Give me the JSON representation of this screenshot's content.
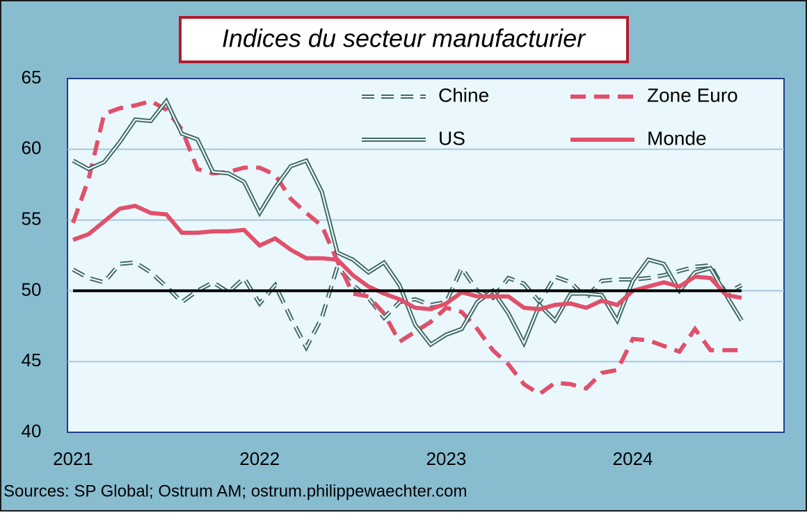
{
  "chart_data": {
    "type": "line",
    "title": "Indices du secteur manufacturier",
    "source": "Sources: SP Global; Ostrum AM; ostrum.philippewaechter.com",
    "categories": [
      "2021",
      null,
      null,
      null,
      null,
      null,
      null,
      null,
      null,
      null,
      null,
      null,
      "2022",
      null,
      null,
      null,
      null,
      null,
      null,
      null,
      null,
      null,
      null,
      null,
      "2023",
      null,
      null,
      null,
      null,
      null,
      null,
      null,
      null,
      null,
      null,
      null,
      "2024",
      null,
      null,
      null,
      null,
      null,
      null,
      null
    ],
    "ylim": [
      40,
      65
    ],
    "yticks": [
      40,
      45,
      50,
      55,
      60,
      65
    ],
    "grid": true,
    "reference_line": 50,
    "legend": "top-right",
    "series": [
      {
        "name": "Chine",
        "color": "#3d6b66",
        "dash": true,
        "double": true,
        "values": [
          51.5,
          50.9,
          50.6,
          51.9,
          52.0,
          51.3,
          50.3,
          49.2,
          50.0,
          50.6,
          49.9,
          50.9,
          49.1,
          50.4,
          48.1,
          46.0,
          48.1,
          51.7,
          50.4,
          49.5,
          48.1,
          49.2,
          49.4,
          49.0,
          49.2,
          51.6,
          50.0,
          49.5,
          50.9,
          50.5,
          49.2,
          51.0,
          50.6,
          49.5,
          50.7,
          50.8,
          50.8,
          50.9,
          51.1,
          51.4,
          51.7,
          51.8,
          49.8,
          50.4
        ]
      },
      {
        "name": "Zone Euro",
        "color": "#e0506a",
        "dash": true,
        "double": false,
        "values": [
          54.8,
          57.9,
          62.5,
          62.9,
          63.1,
          63.4,
          62.8,
          61.4,
          58.6,
          58.3,
          58.4,
          58.7,
          58.7,
          58.2,
          56.5,
          55.5,
          54.6,
          52.1,
          49.8,
          49.6,
          48.4,
          46.4,
          47.1,
          47.8,
          48.8,
          48.5,
          47.3,
          45.8,
          44.8,
          43.4,
          42.7,
          43.5,
          43.4,
          43.1,
          44.2,
          44.4,
          46.6,
          46.5,
          46.1,
          45.7,
          47.3,
          45.8,
          45.8,
          45.8
        ]
      },
      {
        "name": "US",
        "color": "#3d6b66",
        "dash": false,
        "double": true,
        "values": [
          59.2,
          58.6,
          59.1,
          60.5,
          62.1,
          62.0,
          63.4,
          61.1,
          60.7,
          58.4,
          58.3,
          57.7,
          55.5,
          57.3,
          58.8,
          59.2,
          57.0,
          52.7,
          52.2,
          51.3,
          52.0,
          50.4,
          47.6,
          46.2,
          46.9,
          47.3,
          49.2,
          50.0,
          48.4,
          46.3,
          49.0,
          47.9,
          49.8,
          49.8,
          49.7,
          47.9,
          50.7,
          52.2,
          51.9,
          50.0,
          51.3,
          51.6,
          49.7,
          47.9
        ]
      },
      {
        "name": "Monde",
        "color": "#e0506a",
        "dash": false,
        "double": false,
        "values": [
          53.6,
          54.0,
          54.9,
          55.8,
          56.0,
          55.5,
          55.4,
          54.1,
          54.1,
          54.2,
          54.2,
          54.3,
          53.2,
          53.7,
          52.9,
          52.3,
          52.3,
          52.2,
          51.1,
          50.3,
          49.8,
          49.4,
          48.8,
          48.7,
          49.1,
          49.9,
          49.6,
          49.6,
          49.6,
          48.8,
          48.7,
          49.0,
          49.1,
          48.8,
          49.3,
          49.0,
          50.0,
          50.3,
          50.6,
          50.3,
          51.0,
          50.9,
          49.7,
          49.5
        ]
      }
    ]
  }
}
